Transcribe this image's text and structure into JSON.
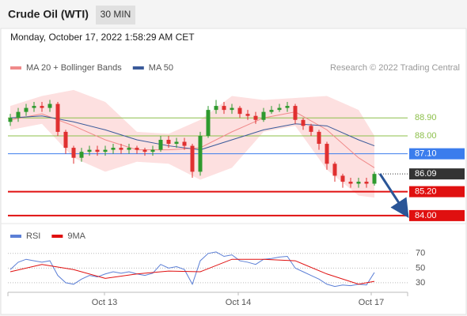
{
  "header": {
    "title": "Crude Oil (WTI)",
    "interval": "30 MIN",
    "timestamp": "Monday, October 17, 2022 1:58:29 AM CET"
  },
  "chart_data": [
    {
      "type": "candlestick",
      "source": "Research © 2022 Trading Central",
      "xlim": [
        -0.3,
        50.2
      ],
      "ylim": [
        83.6,
        90.85
      ],
      "up_color": "#2e9a2e",
      "down_color": "#e03030",
      "candles": {
        "open": [
          88.7,
          88.9,
          89.2,
          89.4,
          89.5,
          89.4,
          89.6,
          88.2,
          87.4,
          86.9,
          87.2,
          87.3,
          87.2,
          87.3,
          87.4,
          87.3,
          87.4,
          87.3,
          87.2,
          87.3,
          87.8,
          87.6,
          87.7,
          87.5,
          86.2,
          88.0,
          89.3,
          89.5,
          89.3,
          89.4,
          89.1,
          89.0,
          88.8,
          89.2,
          89.3,
          89.4,
          89.5,
          88.8,
          88.5,
          88.2,
          87.6,
          86.6,
          86.0,
          85.7,
          85.6,
          85.7,
          85.6
        ],
        "high": [
          89.1,
          89.4,
          89.6,
          89.7,
          89.7,
          89.8,
          89.7,
          88.3,
          87.5,
          87.4,
          87.5,
          87.5,
          87.5,
          87.6,
          87.6,
          87.6,
          87.5,
          87.4,
          87.5,
          88.0,
          88.0,
          87.9,
          87.9,
          87.6,
          88.2,
          89.5,
          89.8,
          89.7,
          89.6,
          89.5,
          89.3,
          89.2,
          89.4,
          89.5,
          89.6,
          89.7,
          89.6,
          88.9,
          88.6,
          88.3,
          87.7,
          86.7,
          86.1,
          85.9,
          85.9,
          85.9,
          86.2
        ],
        "low": [
          88.5,
          88.7,
          89.0,
          89.2,
          89.2,
          89.2,
          88.0,
          87.1,
          86.6,
          86.7,
          87.0,
          87.0,
          87.0,
          87.1,
          87.1,
          87.1,
          87.1,
          87.0,
          87.0,
          87.2,
          87.4,
          87.4,
          87.3,
          85.9,
          86.0,
          87.9,
          89.1,
          89.1,
          89.1,
          88.9,
          88.8,
          88.6,
          88.7,
          89.1,
          89.2,
          89.2,
          88.6,
          88.3,
          88.0,
          87.3,
          86.3,
          85.7,
          85.4,
          85.4,
          85.4,
          85.4,
          85.5
        ],
        "close": [
          88.9,
          89.2,
          89.4,
          89.5,
          89.4,
          89.6,
          88.2,
          87.4,
          86.9,
          87.2,
          87.3,
          87.2,
          87.3,
          87.4,
          87.3,
          87.4,
          87.3,
          87.2,
          87.3,
          87.8,
          87.6,
          87.7,
          87.5,
          86.2,
          88.0,
          89.3,
          89.5,
          89.3,
          89.4,
          89.1,
          89.0,
          88.8,
          89.2,
          89.3,
          89.4,
          89.5,
          88.8,
          88.5,
          88.2,
          87.6,
          86.6,
          86.0,
          85.7,
          85.6,
          85.7,
          85.6,
          86.09
        ]
      },
      "series": [
        {
          "name": "MA 20 + Bollinger Bands",
          "color": "#f08a8a",
          "band_color": "#fde0e0",
          "x": [
            0,
            4,
            8,
            12,
            16,
            20,
            24,
            28,
            32,
            36,
            40,
            44,
            46
          ],
          "values": [
            88.8,
            89.1,
            88.5,
            87.8,
            87.3,
            87.3,
            87.4,
            88.2,
            88.9,
            89.2,
            88.3,
            86.9,
            86.4
          ],
          "upper": [
            89.5,
            90.0,
            90.3,
            89.7,
            88.2,
            88.1,
            88.8,
            90.0,
            89.8,
            89.9,
            90.0,
            89.3,
            88.0
          ],
          "lower": [
            88.3,
            88.6,
            86.9,
            86.2,
            86.7,
            86.6,
            85.8,
            86.4,
            88.2,
            88.5,
            86.3,
            85.0,
            84.9
          ]
        },
        {
          "name": "MA 50",
          "color": "#3a5a9a",
          "x": [
            0,
            4,
            8,
            12,
            16,
            20,
            24,
            28,
            32,
            36,
            40,
            44,
            46
          ],
          "values": [
            88.9,
            89.0,
            88.7,
            88.3,
            87.8,
            87.5,
            87.3,
            87.8,
            88.3,
            88.6,
            88.5,
            87.8,
            87.5
          ]
        }
      ],
      "levels": [
        {
          "value": 88.9,
          "label": "88.90",
          "color": "#8cbf4a",
          "boxed": false,
          "style": "solid",
          "width": 1
        },
        {
          "value": 88.0,
          "label": "88.00",
          "color": "#8cbf4a",
          "boxed": false,
          "style": "solid",
          "width": 1
        },
        {
          "value": 87.1,
          "label": "87.10",
          "color": "#3b7ded",
          "boxed": true,
          "style": "solid",
          "width": 1
        },
        {
          "value": 86.09,
          "label": "86.09",
          "color": "#333333",
          "boxed": true,
          "style": "dotted",
          "width": 1
        },
        {
          "value": 85.2,
          "label": "85.20",
          "color": "#e01010",
          "boxed": true,
          "style": "solid",
          "width": 2
        },
        {
          "value": 84.0,
          "label": "84.00",
          "color": "#e01010",
          "boxed": true,
          "style": "solid",
          "width": 2
        }
      ]
    },
    {
      "type": "line",
      "xlim": [
        -0.3,
        50.2
      ],
      "ylim": [
        17,
        87
      ],
      "yticks": [
        70,
        50,
        30
      ],
      "grid": true,
      "xticks": [
        {
          "value": 11.9,
          "label": "Oct 13"
        },
        {
          "value": 28.8,
          "label": "Oct 14"
        },
        {
          "value": 45.6,
          "label": "Oct 17"
        }
      ],
      "series": [
        {
          "name": "RSI",
          "color": "#5b7fd6",
          "x": [
            0,
            1,
            2,
            3,
            4,
            5,
            6,
            7,
            8,
            9,
            10,
            11,
            12,
            13,
            14,
            15,
            16,
            17,
            18,
            19,
            20,
            21,
            22,
            23,
            24,
            25,
            26,
            27,
            28,
            29,
            30,
            31,
            32,
            33,
            34,
            35,
            36,
            37,
            38,
            39,
            40,
            41,
            42,
            43,
            44,
            45,
            46
          ],
          "values": [
            48,
            58,
            62,
            60,
            58,
            60,
            40,
            30,
            28,
            35,
            40,
            38,
            42,
            45,
            43,
            45,
            42,
            40,
            43,
            55,
            50,
            52,
            48,
            28,
            60,
            70,
            72,
            66,
            68,
            60,
            58,
            55,
            62,
            63,
            65,
            66,
            50,
            45,
            40,
            35,
            28,
            25,
            27,
            26,
            28,
            27,
            44
          ]
        },
        {
          "name": "9MA",
          "color": "#e01010",
          "x": [
            0,
            4,
            8,
            12,
            16,
            20,
            24,
            28,
            32,
            36,
            40,
            44,
            46
          ],
          "values": [
            45,
            55,
            48,
            36,
            42,
            46,
            45,
            62,
            62,
            60,
            42,
            28,
            32
          ]
        }
      ]
    }
  ]
}
